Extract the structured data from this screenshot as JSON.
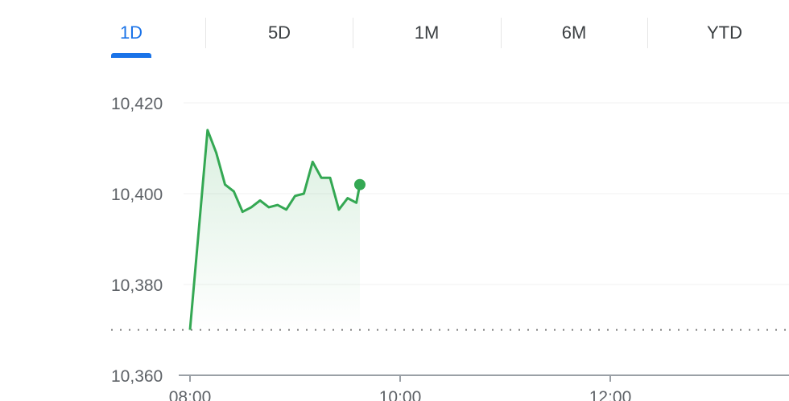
{
  "tabs": [
    {
      "label": "1D",
      "active": true
    },
    {
      "label": "5D",
      "active": false
    },
    {
      "label": "1M",
      "active": false
    },
    {
      "label": "6M",
      "active": false
    },
    {
      "label": "YTD",
      "active": false
    }
  ],
  "colors": {
    "accent": "#1a73e8",
    "line": "#34a853",
    "text": "#5f6368"
  },
  "chart_data": {
    "type": "area",
    "ylim": [
      10360,
      10420
    ],
    "yticks": [
      "10,420",
      "10,400",
      "10,380",
      "10,360"
    ],
    "ytick_values": [
      10420,
      10400,
      10380,
      10360
    ],
    "xticks": [
      "08:00",
      "10:00",
      "12:00"
    ],
    "grid": true,
    "previous_close": 10370,
    "series": [
      {
        "x": [
          "08:00",
          "08:10",
          "08:15",
          "08:20",
          "08:25",
          "08:30",
          "08:35",
          "08:40",
          "08:45",
          "08:50",
          "08:55",
          "09:00",
          "09:05",
          "09:10",
          "09:15",
          "09:20",
          "09:25",
          "09:30",
          "09:35",
          "09:37"
        ],
        "values": [
          10370,
          10414,
          10409,
          10402,
          10400.5,
          10396,
          10397,
          10398.5,
          10397,
          10397.5,
          10396.5,
          10399.5,
          10400,
          10407,
          10403.5,
          10403.5,
          10396.5,
          10399,
          10398,
          10402
        ]
      }
    ]
  }
}
